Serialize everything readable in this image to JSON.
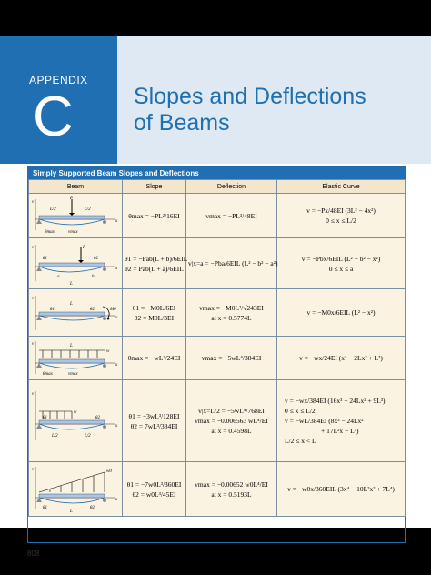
{
  "appendix_label": "APPENDIX",
  "appendix_letter": "C",
  "title_line1": "Slopes and Deflections",
  "title_line2": "of Beams",
  "table_title": "Simply Supported Beam Slopes and Deflections",
  "columns": [
    "Beam",
    "Slope",
    "Deflection",
    "Elastic Curve"
  ],
  "rows": [
    {
      "beam_labels": [
        "v",
        "P",
        "L/2",
        "L/2",
        "θmax",
        "vmax",
        "x"
      ],
      "slope": [
        "θmax = −PL²/16EI"
      ],
      "deflection": [
        "vmax = −PL³/48EI"
      ],
      "curve": [
        "v = −Px/48EI (3L² − 4x²)",
        "0 ≤ x ≤ L/2"
      ]
    },
    {
      "beam_labels": [
        "v",
        "P",
        "θ1",
        "θ2",
        "a",
        "b",
        "L",
        "x"
      ],
      "slope": [
        "θ1 = −Pab(L + b)/6EIL",
        "θ2 = Pab(L + a)/6EIL"
      ],
      "deflection": [
        "v|x=a = −Pba/6EIL (L² − b² − a²)"
      ],
      "curve": [
        "v = −Pbx/6EIL (L² − b² − x²)",
        "0 ≤ x ≤ a"
      ]
    },
    {
      "beam_labels": [
        "v",
        "L",
        "θ1",
        "θ2",
        "M0",
        "x"
      ],
      "slope": [
        "θ1 = −M0L/6EI",
        "θ2 = M0L/3EI"
      ],
      "deflection": [
        "vmax = −M0L²/√243EI",
        "at x = 0.5774L"
      ],
      "curve": [
        "v = −M0x/6EIL (L² − x²)"
      ]
    },
    {
      "beam_labels": [
        "v",
        "L",
        "w",
        "θmax",
        "vmax",
        "x"
      ],
      "slope": [
        "θmax = −wL³/24EI"
      ],
      "deflection": [
        "vmax = −5wL⁴/384EI"
      ],
      "curve": [
        "v = −wx/24EI (x³ − 2Lx² + L³)"
      ]
    },
    {
      "beam_labels": [
        "v",
        "w",
        "θ1",
        "θ2",
        "L/2",
        "L/2",
        "x"
      ],
      "slope": [
        "θ1 = −3wL³/128EI",
        "θ2 = 7wL³/384EI"
      ],
      "deflection": [
        "v|x=L/2 = −5wL⁴/768EI",
        "vmax = −0.006563 wL⁴/EI",
        "at x = 0.4598L"
      ],
      "curve": [
        "v = −wx/384EI (16x³ − 24Lx² + 9L³)",
        "0 ≤ x ≤ L/2",
        "v = −wL/384EI (8x³ − 24Lx²",
        "+ 17L²x − L³)",
        "L/2 ≤ x < L"
      ]
    },
    {
      "beam_labels": [
        "v",
        "w0",
        "θ1",
        "θ2",
        "L",
        "x"
      ],
      "slope": [
        "θ1 = −7w0L³/360EI",
        "θ2 = w0L³/45EI"
      ],
      "deflection": [
        "vmax = −0.00652 w0L⁴/EI",
        "at x = 0.5193L"
      ],
      "curve": [
        "v = −w0x/360EIL (3x⁴ − 10L²x² + 7L⁴)"
      ]
    }
  ],
  "page_number": "808",
  "colors": {
    "accent": "#1f6fb2",
    "title_band": "#dfe9f3",
    "header_fill": "#f3e6cc",
    "cell_fill": "#fbf3e2"
  }
}
